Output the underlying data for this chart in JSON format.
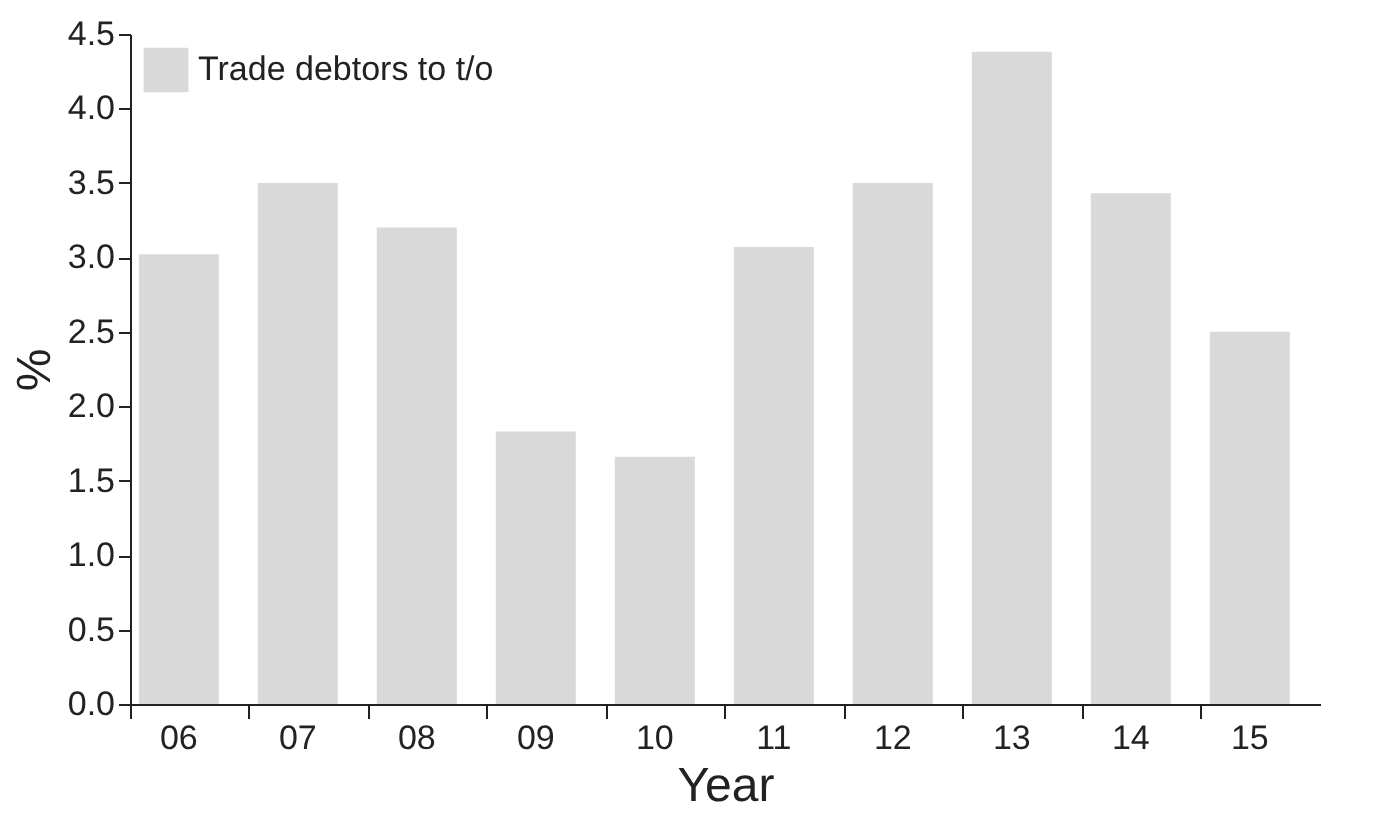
{
  "chart_data": {
    "type": "bar",
    "xlabel": "Year",
    "ylabel": "%",
    "categories": [
      "06",
      "07",
      "08",
      "09",
      "10",
      "11",
      "12",
      "13",
      "14",
      "15"
    ],
    "series": [
      {
        "name": "Trade debtors to t/o",
        "color": "#d9d9d9",
        "values": [
          3.02,
          3.5,
          3.2,
          1.83,
          1.66,
          3.07,
          3.5,
          4.38,
          3.43,
          2.5
        ]
      }
    ],
    "ylim": [
      0,
      4.5
    ],
    "yticks": [
      {
        "value": 0,
        "label": "0.0"
      },
      0.5,
      {
        "value": 1,
        "label": "1.0"
      },
      1.5,
      {
        "value": 2,
        "label": "2.0"
      },
      2.5,
      {
        "value": 3,
        "label": "3.0"
      },
      3.5,
      {
        "value": 4,
        "label": "4.0"
      },
      4.5
    ],
    "grid": false,
    "legend": "top left"
  }
}
